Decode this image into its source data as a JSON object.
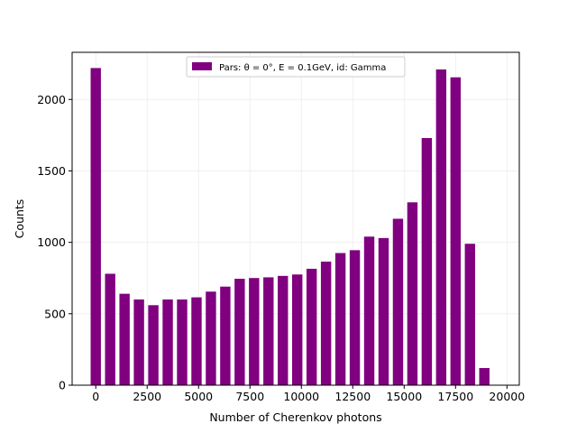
{
  "chart_data": {
    "type": "bar",
    "xlabel": "Number of Cherenkov photons",
    "ylabel": "Counts",
    "xlim": [
      -1150,
      20600
    ],
    "ylim": [
      0,
      2330
    ],
    "bin_width": 500,
    "bar_color": "#800080",
    "grid": true,
    "legend_position": "top-center",
    "legend_label": "Pars: θ = 0°, E = 0.1GeV, id: Gamma",
    "x_ticks": [
      0,
      2500,
      5000,
      7500,
      10000,
      12500,
      15000,
      17500,
      20000
    ],
    "y_ticks": [
      0,
      500,
      1000,
      1500,
      2000
    ],
    "x": [
      0,
      700,
      1400,
      2100,
      2800,
      3500,
      4200,
      4900,
      5600,
      6300,
      7000,
      7700,
      8400,
      9100,
      9800,
      10500,
      11200,
      11900,
      12600,
      13300,
      14000,
      14700,
      15400,
      16100,
      16800,
      17500,
      18200,
      18900
    ],
    "values": [
      2220,
      780,
      640,
      600,
      560,
      600,
      600,
      615,
      655,
      690,
      745,
      750,
      755,
      765,
      775,
      815,
      865,
      925,
      945,
      1040,
      1030,
      1165,
      1280,
      1730,
      2210,
      2155,
      990,
      120
    ]
  }
}
